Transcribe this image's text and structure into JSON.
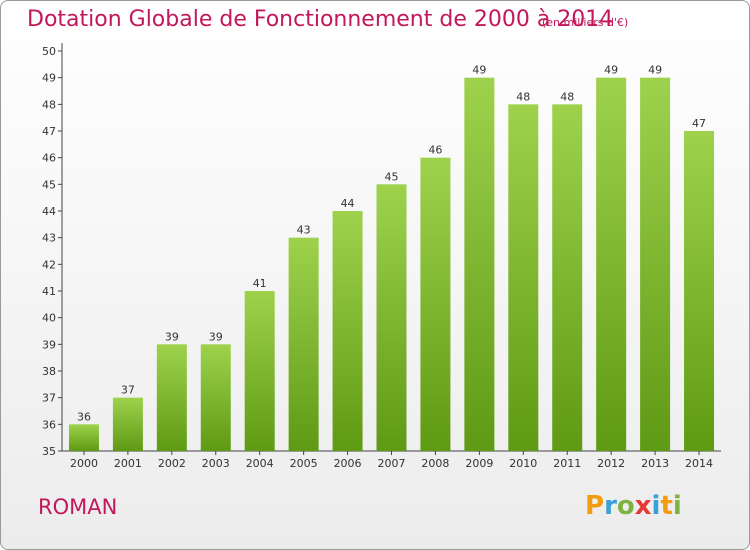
{
  "title": "Dotation Globale de Fonctionnement de 2000 à 2014",
  "subtitle": "(en milliers d'€)",
  "commune": "ROMAN",
  "logo": "Proxiti",
  "colors": {
    "title": "#c2185b",
    "bar_top": "#9ed24d",
    "bar_bottom": "#5f9a14"
  },
  "chart_data": {
    "type": "bar",
    "title": "Dotation Globale de Fonctionnement de 2000 à 2014",
    "subtitle": "(en milliers d'€)",
    "categories": [
      "2000",
      "2001",
      "2002",
      "2003",
      "2004",
      "2005",
      "2006",
      "2007",
      "2008",
      "2009",
      "2010",
      "2011",
      "2012",
      "2013",
      "2014"
    ],
    "values": [
      36,
      37,
      39,
      39,
      41,
      43,
      44,
      45,
      46,
      49,
      48,
      48,
      49,
      49,
      47
    ],
    "ylim": [
      35,
      50
    ],
    "yticks": [
      35,
      36,
      37,
      38,
      39,
      40,
      41,
      42,
      43,
      44,
      45,
      46,
      47,
      48,
      49,
      50
    ],
    "grid": false,
    "data_labels": true
  }
}
